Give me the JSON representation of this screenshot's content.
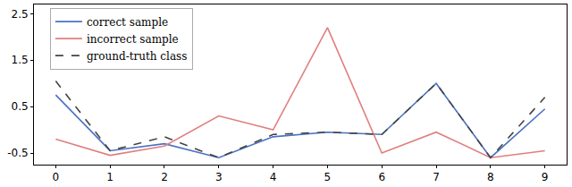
{
  "chart_data": {
    "type": "line",
    "x": [
      0,
      1,
      2,
      3,
      4,
      5,
      6,
      7,
      8,
      9
    ],
    "series": [
      {
        "name": "correct sample",
        "color": "#4a72c4",
        "line_style": "solid",
        "values": [
          0.75,
          -0.45,
          -0.3,
          -0.6,
          -0.15,
          -0.05,
          -0.1,
          1.0,
          -0.6,
          0.45
        ]
      },
      {
        "name": "incorrect sample",
        "color": "#e07f7f",
        "line_style": "solid",
        "values": [
          -0.2,
          -0.55,
          -0.35,
          0.3,
          0.0,
          2.2,
          -0.5,
          -0.05,
          -0.6,
          -0.45
        ]
      },
      {
        "name": "ground-truth class",
        "color": "#444444",
        "line_style": "dash",
        "values": [
          1.05,
          -0.45,
          -0.15,
          -0.6,
          -0.1,
          -0.05,
          -0.1,
          1.0,
          -0.6,
          0.7
        ]
      }
    ],
    "xlim": [
      -0.4,
      9.4
    ],
    "xticks": [
      0,
      1,
      2,
      3,
      4,
      5,
      6,
      7,
      8,
      9
    ],
    "ylim": [
      -0.75,
      2.7
    ],
    "yticks": [
      -0.5,
      0.5,
      1.5,
      2.5
    ],
    "grid": false,
    "legend": "upper left"
  }
}
